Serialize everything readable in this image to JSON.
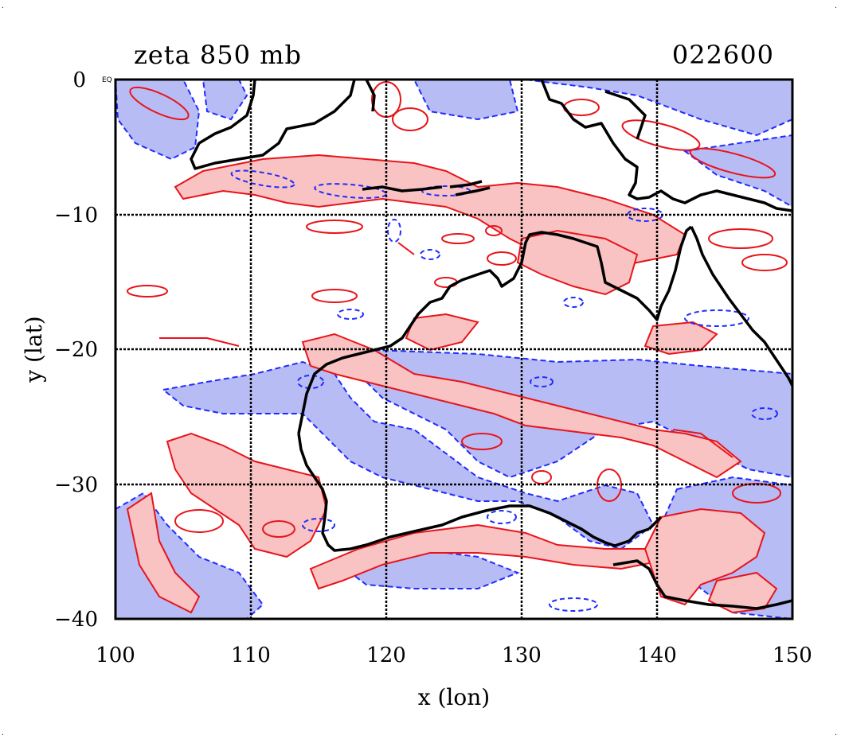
{
  "chart_data": {
    "type": "contour_map",
    "title": "zeta 850 mb",
    "timestamp": "022600",
    "xlabel": "x (lon)",
    "ylabel": "y (lat)",
    "xlim": [
      100,
      150
    ],
    "ylim": [
      -40,
      0
    ],
    "x_ticks": [
      "100",
      "110",
      "120",
      "130",
      "140",
      "150"
    ],
    "y_ticks": [
      "0",
      "−10",
      "−20",
      "−30",
      "−40"
    ],
    "corner_label": "EQ",
    "grid": true,
    "series": [
      {
        "name": "positive",
        "color": "#e8141b",
        "fill": "#f9c3c3",
        "style": "solid"
      },
      {
        "name": "negative",
        "color": "#1f2bff",
        "fill": "#b8bcf5",
        "style": "dashed"
      }
    ]
  },
  "colors": {
    "coastline": "#000000",
    "grid": "#000000"
  }
}
